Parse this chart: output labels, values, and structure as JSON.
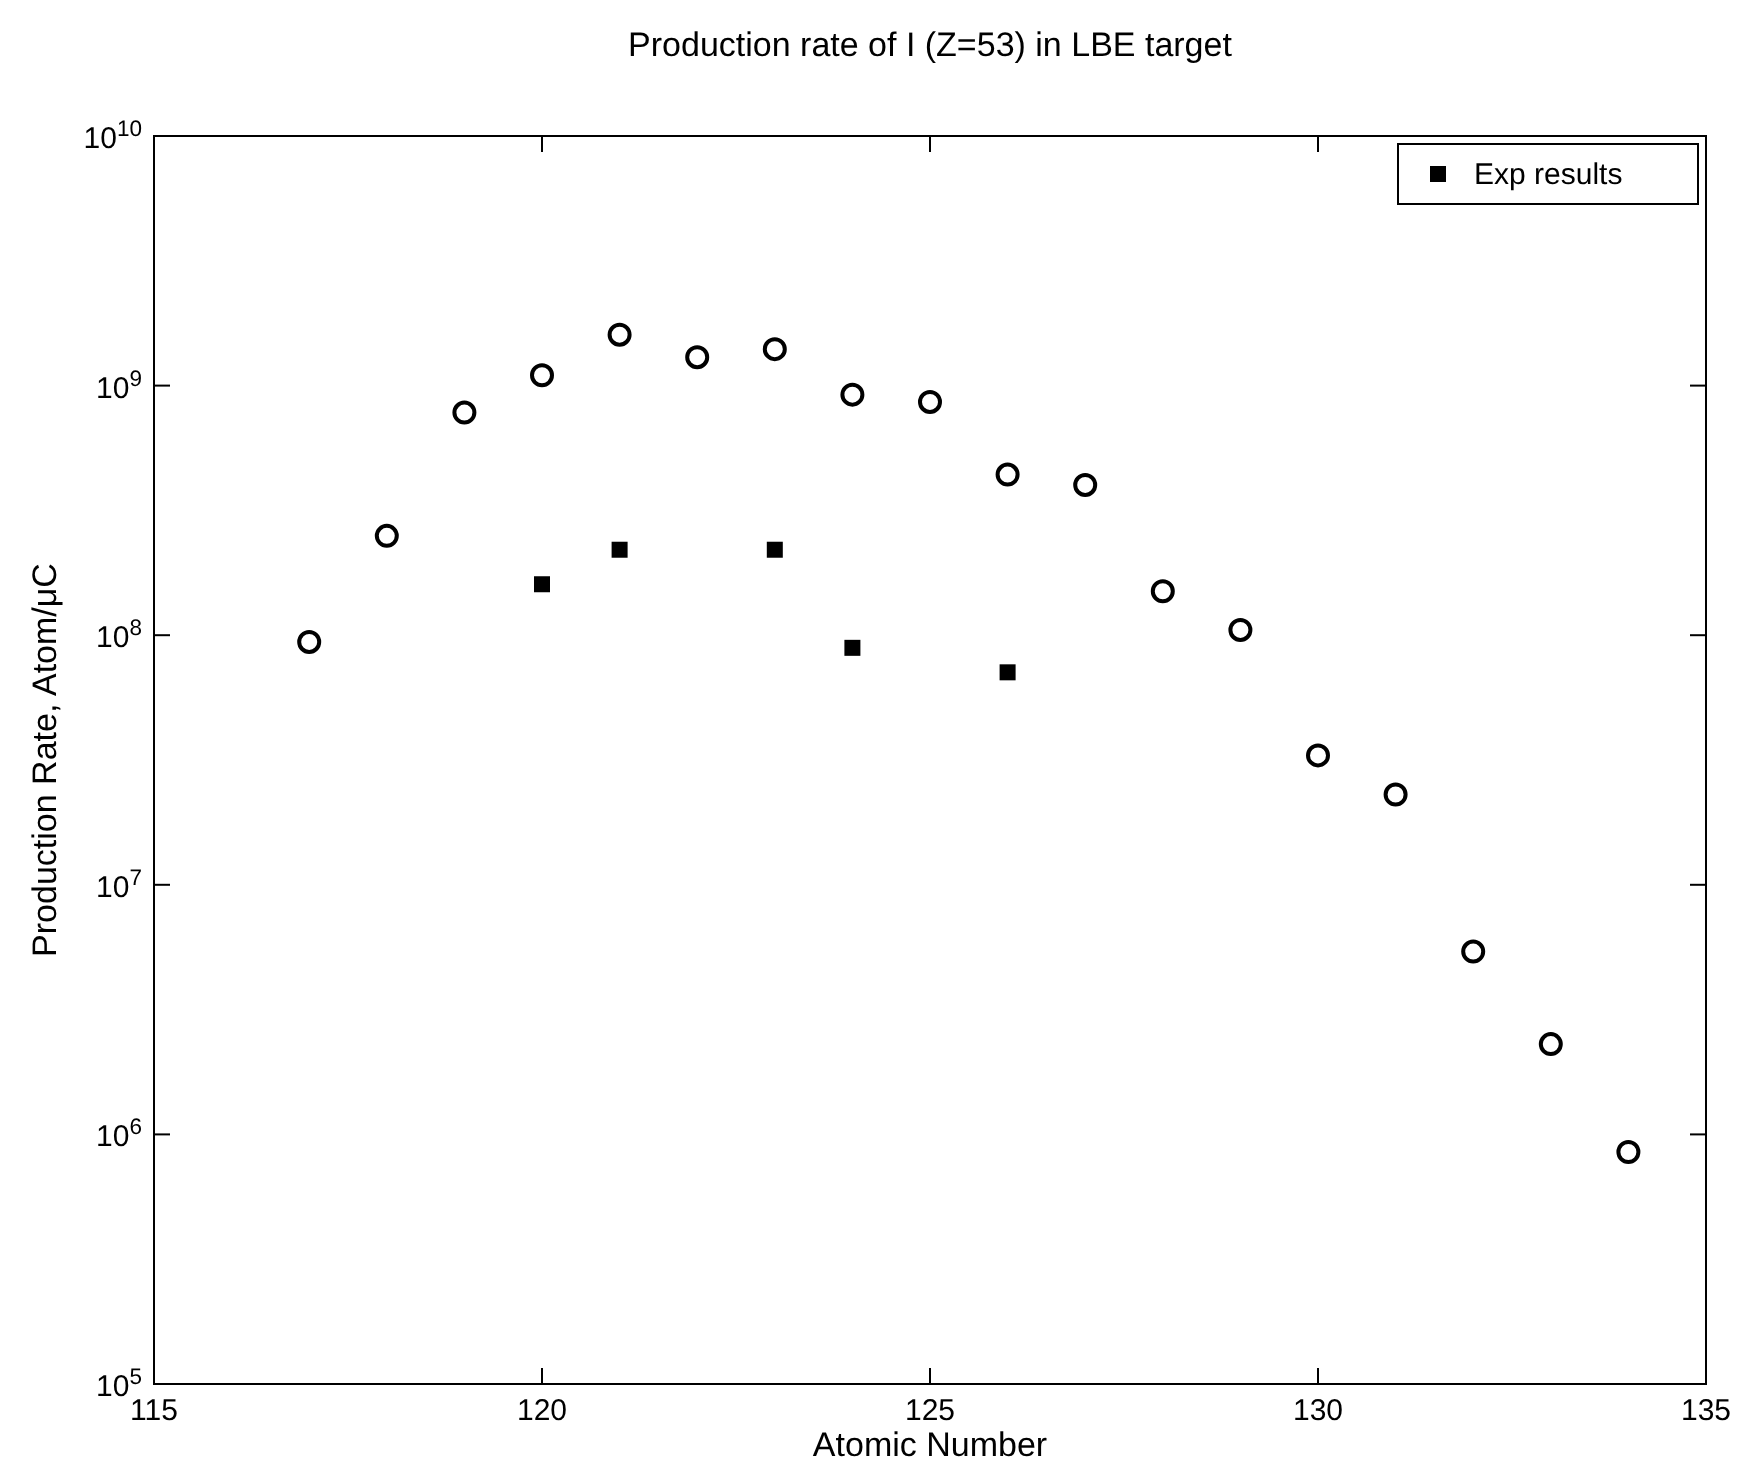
{
  "chart_data": {
    "type": "scatter",
    "title": "Production rate of I (Z=53) in LBE target",
    "xlabel": "Atomic Number",
    "ylabel": "Production Rate, Atom/μC",
    "xlim": [
      115,
      135
    ],
    "xticks": [
      115,
      120,
      125,
      130,
      135
    ],
    "ylim": [
      100000,
      10000000000
    ],
    "yticks": [
      {
        "value": 100000,
        "label": "10$^{5}$"
      },
      {
        "value": 1000000,
        "label": "10$^{6}$"
      },
      {
        "value": 10000000,
        "label": "10$^{7}$"
      },
      {
        "value": 100000000,
        "label": "10$^{8}$"
      },
      {
        "value": 1000000000,
        "label": "10$^{9}$"
      },
      {
        "value": 10000000000,
        "label": "10$^{10}$"
      }
    ],
    "log": true,
    "grid": false,
    "legend": "top right",
    "series": [
      {
        "name": "Exp results",
        "color": "#000000",
        "marker": "square",
        "x": [
          120,
          121,
          123,
          124,
          126
        ],
        "values": [
          160000000,
          220000000,
          220000000,
          89000000,
          71000000
        ]
      },
      {
        "color": "#000000",
        "marker": "circle",
        "x": [
          117,
          118,
          119,
          120,
          121,
          122,
          123,
          124,
          125,
          126,
          127,
          128,
          129,
          130,
          131,
          132,
          133,
          134
        ],
        "values": [
          94000000,
          250000000,
          780000000,
          1100000000,
          1600000000,
          1300000000,
          1400000000,
          920000000,
          860000000,
          440000000,
          400000000,
          150000000,
          105000000,
          33000000,
          23000000,
          5400000,
          2300000,
          850000
        ]
      }
    ]
  }
}
